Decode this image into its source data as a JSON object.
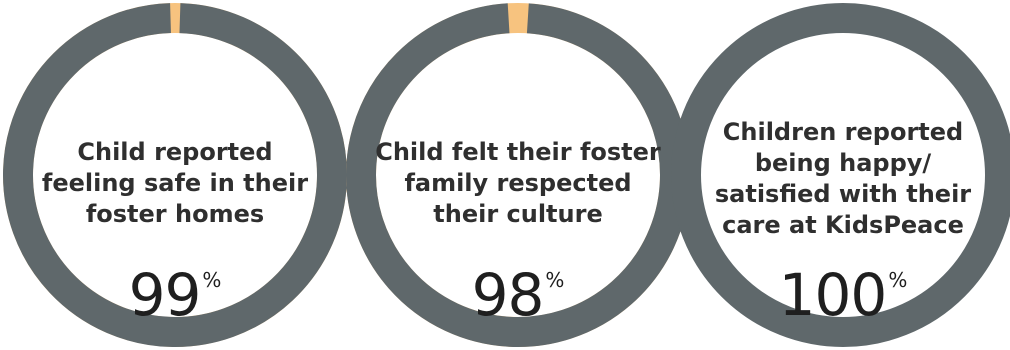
{
  "chart_data": [
    {
      "type": "pie",
      "label": "Child reported\nfeeling safe in their\nfoster homes",
      "value": 99,
      "unit": "%"
    },
    {
      "type": "pie",
      "label": "Child felt their foster\nfamily respected\ntheir culture",
      "value": 98,
      "unit": "%"
    },
    {
      "type": "pie",
      "label": "Children reported\nbeing happy/\nsatisfied with their\ncare at KidsPeace",
      "value": 100,
      "unit": "%"
    }
  ],
  "colors": {
    "fill": "#5f686b",
    "remainder": "#f7c37f",
    "text": "#2f2f2f"
  }
}
